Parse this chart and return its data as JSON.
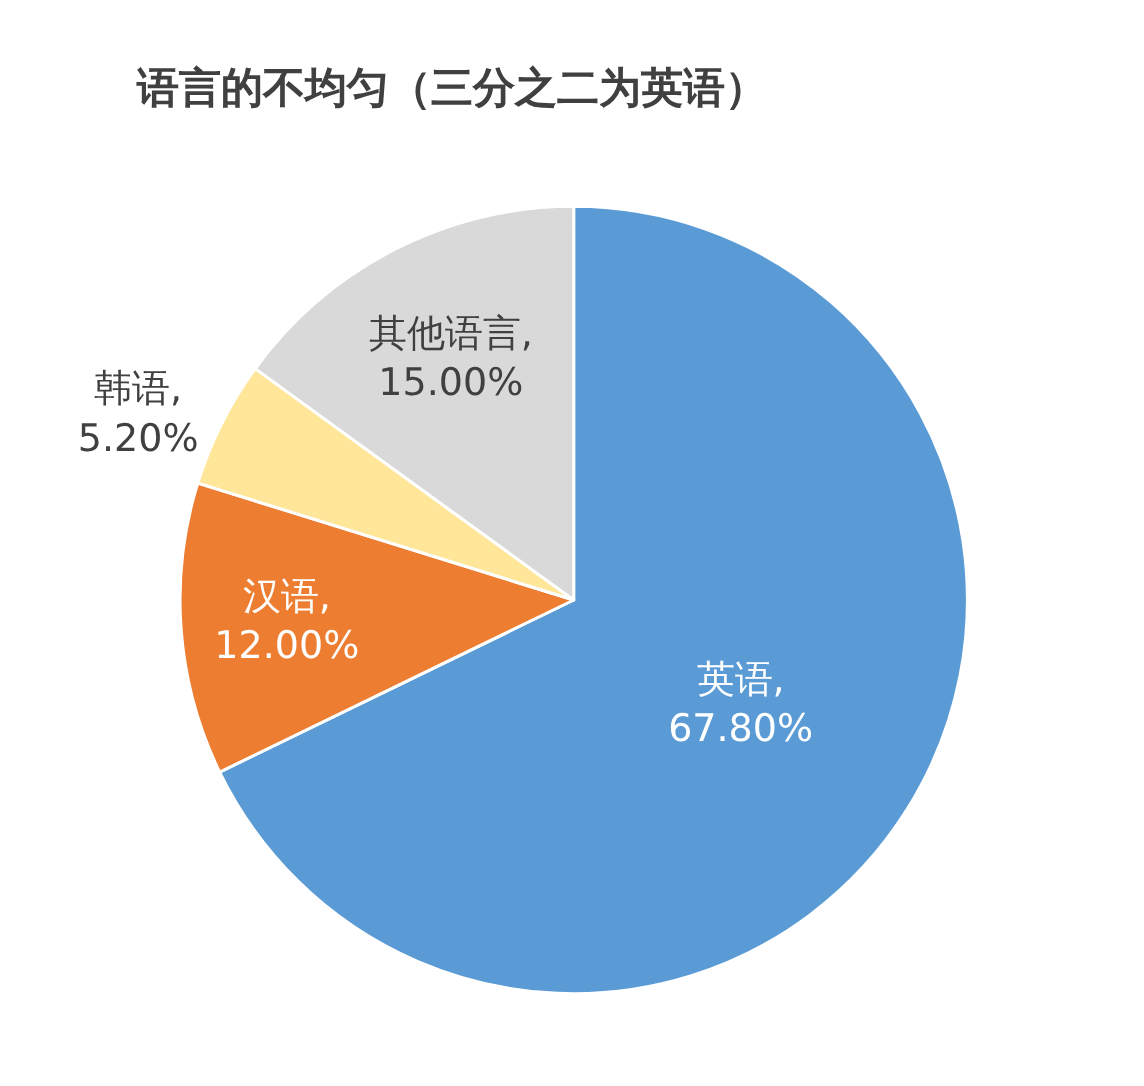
{
  "chart_data": {
    "type": "pie",
    "title": "语言的不均匀（三分之二为英语）",
    "categories": [
      "英语",
      "汉语",
      "韩语",
      "其他语言"
    ],
    "values": [
      67.8,
      12.0,
      5.2,
      15.0
    ],
    "colors": [
      "#5b9bd5",
      "#ed7d31",
      "#ffe699",
      "#d9d9d9"
    ],
    "value_labels": [
      ",\n67.80%",
      ",\n12.00%",
      ",\n5.20%",
      ",\n15.00%"
    ],
    "legend": false
  }
}
